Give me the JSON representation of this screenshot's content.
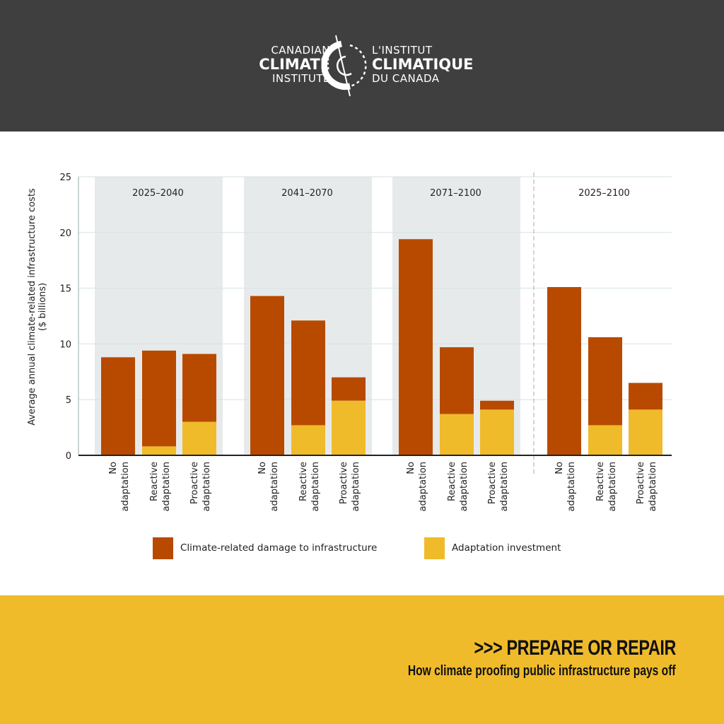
{
  "header": {
    "logo": {
      "en_line1": "CANADIAN",
      "en_line2": "CLIMATE",
      "en_line3": "INSTITUTE",
      "fr_line1": "L'INSTITUT",
      "fr_line2": "CLIMATIQUE",
      "fr_line3": "DU CANADA"
    }
  },
  "colors": {
    "damage": "#b84a00",
    "adaptation": "#f0bb2a",
    "panel_bg": "#e7eaeb",
    "header_bg": "#3f3f3f",
    "footer_bg": "#f0bb2a"
  },
  "chart_data": {
    "type": "bar",
    "stacked": true,
    "title": "",
    "ylabel": "Average annual climate-related infrastructure costs ($ billions)",
    "ylabel_line1": "Average annual climate-related infrastructure costs",
    "ylabel_line2": "($ billions)",
    "xlabel": "",
    "ylim": [
      0,
      25
    ],
    "yticks": [
      0,
      5,
      10,
      15,
      20,
      25
    ],
    "grid": true,
    "legend_position": "bottom",
    "groups": [
      {
        "label": "2025–2040",
        "categories": [
          "No adaptation",
          "Reactive adaptation",
          "Proactive adaptation"
        ],
        "adaptation": [
          0,
          0.8,
          3.0
        ],
        "damage": [
          8.8,
          8.6,
          6.1
        ],
        "total": [
          8.8,
          9.4,
          9.1
        ]
      },
      {
        "label": "2041–2070",
        "categories": [
          "No adaptation",
          "Reactive adaptation",
          "Proactive adaptation"
        ],
        "adaptation": [
          0,
          2.7,
          4.9
        ],
        "damage": [
          14.3,
          9.4,
          2.1
        ],
        "total": [
          14.3,
          12.1,
          7.0
        ]
      },
      {
        "label": "2071–2100",
        "categories": [
          "No adaptation",
          "Reactive adaptation",
          "Proactive adaptation"
        ],
        "adaptation": [
          0,
          3.7,
          4.1
        ],
        "damage": [
          19.4,
          6.0,
          0.8
        ],
        "total": [
          19.4,
          9.7,
          4.9
        ]
      },
      {
        "label": "2025–2100",
        "categories": [
          "No adaptation",
          "Reactive adaptation",
          "Proactive adaptation"
        ],
        "adaptation": [
          0,
          2.7,
          4.1
        ],
        "damage": [
          15.1,
          7.9,
          2.4
        ],
        "total": [
          15.1,
          10.6,
          6.5
        ]
      }
    ],
    "series": [
      {
        "name": "Climate-related damage to infrastructure",
        "color": "#b84a00"
      },
      {
        "name": "Adaptation investment",
        "color": "#f0bb2a"
      }
    ]
  },
  "legend": {
    "damage_label": "Climate-related damage to infrastructure",
    "adaptation_label": "Adaptation investment"
  },
  "footer": {
    "title": ">>> PREPARE OR REPAIR",
    "subtitle": "How climate proofing public infrastructure pays off"
  }
}
